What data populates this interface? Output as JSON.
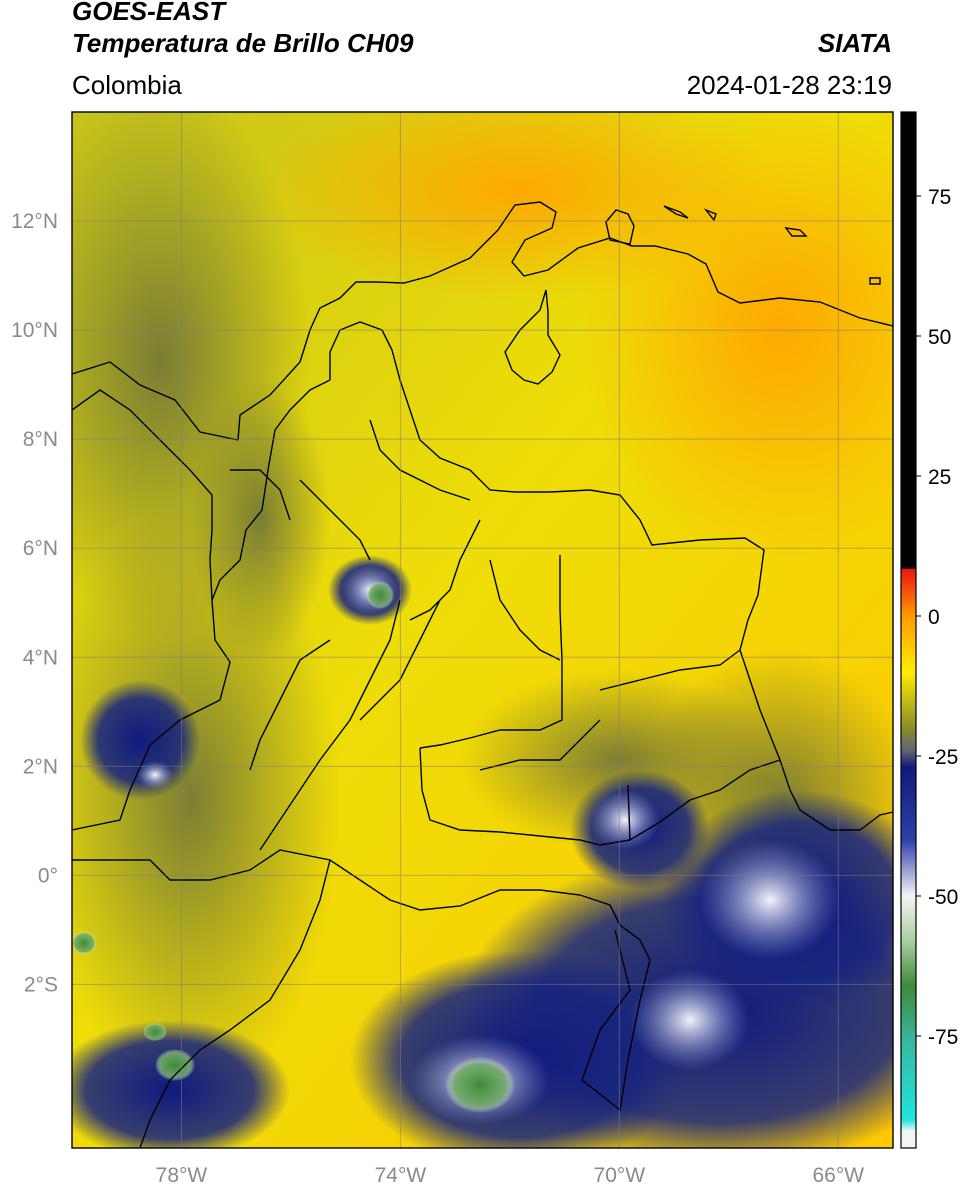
{
  "header": {
    "title_line1": "GOES-EAST",
    "title_line2": "Temperatura de Brillo CH09",
    "brand": "SIATA",
    "region": "Colombia",
    "timestamp": "2024-01-28 23:19"
  },
  "map": {
    "lon_range": [
      -80,
      -65
    ],
    "lat_range": [
      -5,
      14
    ],
    "lat_ticks": [
      {
        "value": 12,
        "label": "12°N"
      },
      {
        "value": 10,
        "label": "10°N"
      },
      {
        "value": 8,
        "label": "8°N"
      },
      {
        "value": 6,
        "label": "6°N"
      },
      {
        "value": 4,
        "label": "4°N"
      },
      {
        "value": 2,
        "label": "2°N"
      },
      {
        "value": 0,
        "label": "0°"
      },
      {
        "value": -2,
        "label": "2°S"
      }
    ],
    "lon_ticks": [
      {
        "value": -78,
        "label": "78°W"
      },
      {
        "value": -74,
        "label": "74°W"
      },
      {
        "value": -70,
        "label": "70°W"
      },
      {
        "value": -66,
        "label": "66°W"
      }
    ],
    "grid": true
  },
  "colorbar": {
    "range": [
      -95,
      90
    ],
    "ticks": [
      {
        "value": 75,
        "label": "75"
      },
      {
        "value": 50,
        "label": "50"
      },
      {
        "value": 25,
        "label": "25"
      },
      {
        "value": 0,
        "label": "0"
      },
      {
        "value": -25,
        "label": "-25"
      },
      {
        "value": -50,
        "label": "-50"
      },
      {
        "value": -75,
        "label": "-75"
      }
    ],
    "colors": {
      "black": "#000000",
      "red": "#e8150f",
      "orange": "#ff9a00",
      "yellow": "#ffee00",
      "olive": "#8c8c2a",
      "gray": "#5f6670",
      "navy": "#101a7a",
      "white": "#f4f4f4",
      "green": "#3f8a3a",
      "cyan": "#1fe5e0"
    }
  }
}
